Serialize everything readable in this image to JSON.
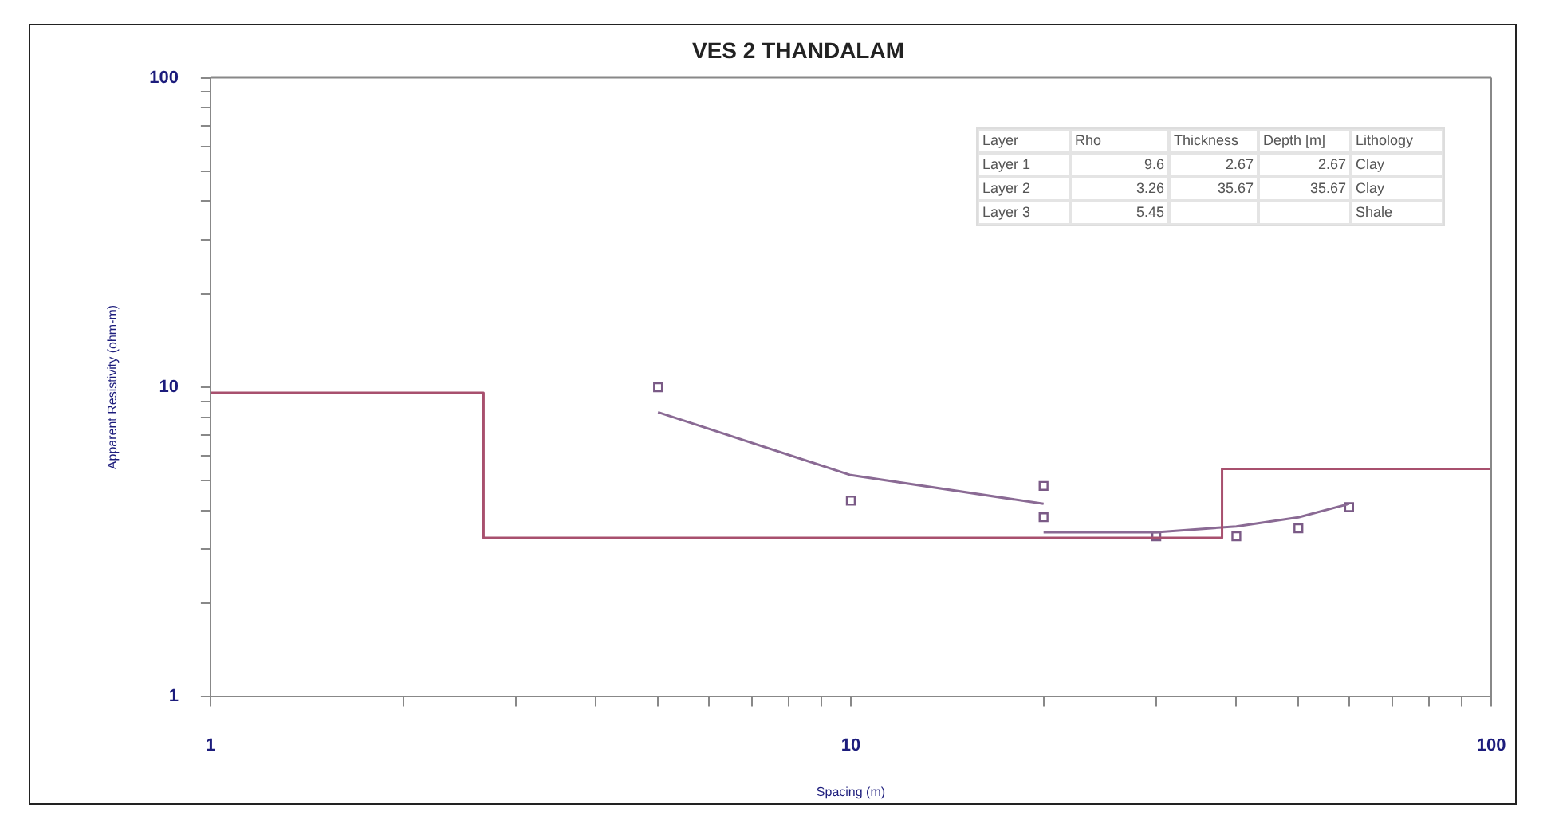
{
  "chart_data": {
    "type": "line",
    "title": "VES 2 THANDALAM",
    "xlabel": "Spacing (m)",
    "ylabel": "Apparent Resistivity (ohm-m)",
    "log": "xy",
    "grid": false,
    "legend": false,
    "xlim": [
      1,
      100
    ],
    "ylim": [
      1,
      100
    ],
    "xticks": [
      1,
      {
        "value": 2,
        "label": null
      },
      {
        "value": 3,
        "label": null
      },
      {
        "value": 4,
        "label": null
      },
      {
        "value": 5,
        "label": null
      },
      {
        "value": 6,
        "label": null
      },
      {
        "value": 7,
        "label": null
      },
      {
        "value": 8,
        "label": null
      },
      {
        "value": 9,
        "label": null
      },
      10,
      {
        "value": 20,
        "label": null
      },
      {
        "value": 30,
        "label": null
      },
      {
        "value": 40,
        "label": null
      },
      {
        "value": 50,
        "label": null
      },
      {
        "value": 60,
        "label": null
      },
      {
        "value": 70,
        "label": null
      },
      {
        "value": 80,
        "label": null
      },
      {
        "value": 90,
        "label": null
      },
      100
    ],
    "yticks": [
      1,
      {
        "value": 2,
        "label": null
      },
      {
        "value": 3,
        "label": null
      },
      {
        "value": 4,
        "label": null
      },
      {
        "value": 5,
        "label": null
      },
      {
        "value": 6,
        "label": null
      },
      {
        "value": 7,
        "label": null
      },
      {
        "value": 8,
        "label": null
      },
      {
        "value": 9,
        "label": null
      },
      10,
      {
        "value": 20,
        "label": null
      },
      {
        "value": 30,
        "label": null
      },
      {
        "value": 40,
        "label": null
      },
      {
        "value": 50,
        "label": null
      },
      {
        "value": 60,
        "label": null
      },
      {
        "value": 70,
        "label": null
      },
      {
        "value": 80,
        "label": null
      },
      {
        "value": 90,
        "label": null
      },
      100
    ],
    "series": [
      {
        "type": "step",
        "color": "#a8506e",
        "x": [
          1,
          2.67,
          38,
          100
        ],
        "values": [
          9.6,
          3.26,
          5.45,
          5.45
        ]
      },
      {
        "type": "line",
        "color": "#8a6a94",
        "marker": "none",
        "x": [
          5,
          10,
          20
        ],
        "values": [
          8.3,
          5.2,
          4.2
        ]
      },
      {
        "type": "line",
        "color": "#8a6a94",
        "marker": "none",
        "x": [
          20,
          30,
          40,
          50,
          60
        ],
        "values": [
          3.4,
          3.4,
          3.55,
          3.8,
          4.2
        ]
      },
      {
        "type": "scatter",
        "color": "#7a5a86",
        "marker": "square",
        "x": [
          5,
          10,
          20,
          20,
          30,
          40,
          50,
          60
        ],
        "values": [
          10,
          4.3,
          4.8,
          3.8,
          3.3,
          3.3,
          3.5,
          4.1
        ]
      }
    ],
    "annotations": [
      "Layer",
      "Rho",
      "Thickness",
      "Depth [m]",
      "Lithology",
      "Layer 1",
      "9.6",
      "2.67",
      "2.67",
      "Clay",
      "Layer 2",
      "3.26",
      "35.67",
      "35.67",
      "Clay",
      "Layer 3",
      "5.45",
      "Shale"
    ]
  }
}
